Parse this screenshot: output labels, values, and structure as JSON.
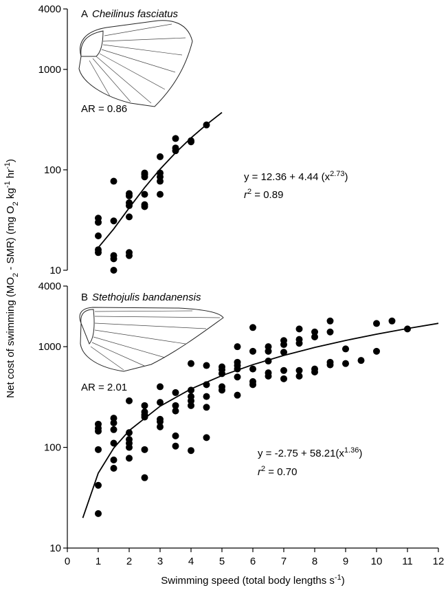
{
  "chart_data": [
    {
      "type": "scatter",
      "panel": "A",
      "title": "Cheilinus fasciatus",
      "annotation": "AR = 0.86",
      "equation": [
        "y = 12.36 + 4.44 (x",
        "2.73",
        ")"
      ],
      "r2": [
        "r",
        "2",
        " = 0.89"
      ],
      "log_scale": true,
      "ylim": [
        10,
        4000
      ],
      "yticks": [
        10,
        100,
        1000,
        4000
      ],
      "xlim": [
        0,
        12
      ],
      "color": "#000000",
      "x": [
        1,
        1,
        1,
        1,
        1,
        1.5,
        1.5,
        1.5,
        1.5,
        1.5,
        2,
        2,
        2,
        2,
        2,
        2,
        2,
        2.5,
        2.5,
        2.5,
        2.5,
        2.5,
        2.5,
        3,
        3,
        3,
        3,
        3,
        3.5,
        3.5,
        3.5,
        4,
        4,
        4.5
      ],
      "values": [
        33,
        30,
        22,
        16,
        15,
        77,
        31,
        14,
        13,
        10,
        58,
        55,
        47,
        44,
        34,
        15,
        14,
        93,
        90,
        85,
        57,
        45,
        43,
        135,
        93,
        85,
        77,
        57,
        205,
        165,
        155,
        195,
        190,
        280
      ],
      "fit": {
        "x": [
          1,
          1.5,
          2,
          2.5,
          3,
          3.5,
          4,
          4.5,
          5
        ],
        "y": [
          16.8,
          25.8,
          41.8,
          66.5,
          101.5,
          148.1,
          207.8,
          281.9,
          372
        ]
      }
    },
    {
      "type": "scatter",
      "panel": "B",
      "title": "Stethojulis bandanensis",
      "annotation": "AR = 2.01",
      "equation": [
        "y = -2.75 + 58.21(x",
        "1.36",
        ")"
      ],
      "r2": [
        "r",
        "2",
        " = 0.70"
      ],
      "log_scale": true,
      "ylim": [
        10,
        4000
      ],
      "yticks": [
        10,
        100,
        1000,
        4000
      ],
      "xlim": [
        0,
        12
      ],
      "xticks": [
        0,
        1,
        2,
        3,
        4,
        5,
        6,
        7,
        8,
        9,
        10,
        11,
        12
      ],
      "xlabel": [
        "Swimming speed (total body lengths s",
        "-1",
        ")"
      ],
      "color": "#000000",
      "x": [
        1,
        1,
        1,
        1,
        1,
        1,
        1.5,
        1.5,
        1.5,
        1.5,
        1.5,
        1.5,
        2,
        2,
        2,
        2,
        2,
        2,
        2.5,
        2.5,
        2.5,
        2.5,
        2.5,
        2.5,
        3,
        3,
        3,
        3,
        3,
        3.5,
        3.5,
        3.5,
        3.5,
        3.5,
        4,
        4,
        4,
        4,
        4,
        4,
        4.5,
        4.5,
        4.5,
        4.5,
        4.5,
        5,
        5,
        5,
        5,
        5,
        5.5,
        5.5,
        5.5,
        5.5,
        5.5,
        5.5,
        6,
        6,
        6,
        6,
        6,
        6.5,
        6.5,
        6.5,
        6.5,
        6.5,
        7,
        7,
        7,
        7,
        7,
        7.5,
        7.5,
        7.5,
        7.5,
        7.5,
        8,
        8,
        8,
        8,
        8.5,
        8.5,
        8.5,
        8.5,
        9,
        9,
        9.5,
        10,
        10,
        10.5,
        11
      ],
      "values": [
        170,
        155,
        145,
        95,
        42,
        22,
        195,
        175,
        150,
        110,
        75,
        62,
        290,
        140,
        120,
        110,
        100,
        78,
        260,
        225,
        210,
        200,
        95,
        50,
        400,
        280,
        190,
        180,
        160,
        350,
        260,
        230,
        130,
        103,
        680,
        370,
        320,
        290,
        260,
        93,
        650,
        420,
        320,
        250,
        125,
        630,
        590,
        540,
        400,
        370,
        1000,
        700,
        650,
        600,
        500,
        330,
        1550,
        900,
        600,
        450,
        420,
        1000,
        900,
        720,
        550,
        510,
        1150,
        1050,
        880,
        580,
        480,
        1500,
        1180,
        1080,
        580,
        510,
        1400,
        1250,
        600,
        560,
        1800,
        1400,
        700,
        660,
        950,
        680,
        730,
        1700,
        900,
        1800,
        1500
      ],
      "fit": {
        "x": [
          0.5,
          1,
          1.5,
          2,
          3,
          4,
          5,
          6,
          7,
          8,
          9,
          10,
          11,
          12
        ],
        "y": [
          19.9,
          55.5,
          98.2,
          146.7,
          256.6,
          380.8,
          516.6,
          663,
          818,
          981.6,
          1152.7,
          1330,
          1515,
          1707
        ]
      }
    }
  ],
  "ylabel": [
    "Net cost of swimming (MO",
    "2",
    " - SMR) (mg O",
    "2",
    " kg",
    "-1",
    " hr",
    "-1",
    ")"
  ]
}
